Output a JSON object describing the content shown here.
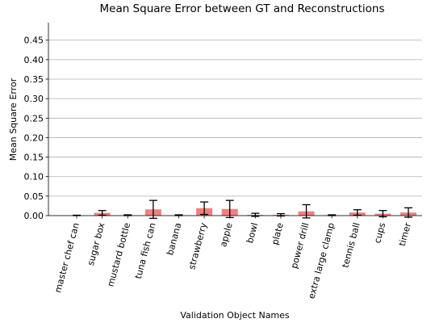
{
  "chart_data": {
    "type": "bar",
    "title": "Mean Square Error between GT and Reconstructions",
    "x_label": "Validation Object Names",
    "y_label": "Mean Square Error",
    "categories": [
      "master chef can",
      "sugar box",
      "mustard bottle",
      "tuna fish can",
      "banana",
      "strawberry",
      "apple",
      "bowl",
      "plate",
      "power drill",
      "extra large clamp",
      "tennis ball",
      "cups",
      "timer"
    ],
    "values": [
      0.0005,
      0.007,
      0.001,
      0.016,
      0.001,
      0.019,
      0.017,
      0.002,
      0.002,
      0.011,
      0.001,
      0.008,
      0.005,
      0.008
    ],
    "errors": [
      0.0005,
      0.006,
      0.001,
      0.023,
      0.001,
      0.016,
      0.022,
      0.004,
      0.003,
      0.017,
      0.001,
      0.007,
      0.008,
      0.012
    ],
    "color": "#f08080",
    "ylim": [
      0,
      0.495
    ],
    "yticks": [
      {
        "value": 0,
        "label": "0.00"
      },
      {
        "value": 0.05,
        "label": "0.05"
      },
      {
        "value": 0.1,
        "label": "0.10"
      },
      {
        "value": 0.15,
        "label": "0.15"
      },
      {
        "value": 0.2,
        "label": "0.20"
      },
      {
        "value": 0.25,
        "label": "0.25"
      },
      {
        "value": 0.3,
        "label": "0.30"
      },
      {
        "value": 0.35,
        "label": "0.35"
      },
      {
        "value": 0.4,
        "label": "0.40"
      },
      {
        "value": 0.45,
        "label": "0.45"
      }
    ],
    "grid": true
  }
}
